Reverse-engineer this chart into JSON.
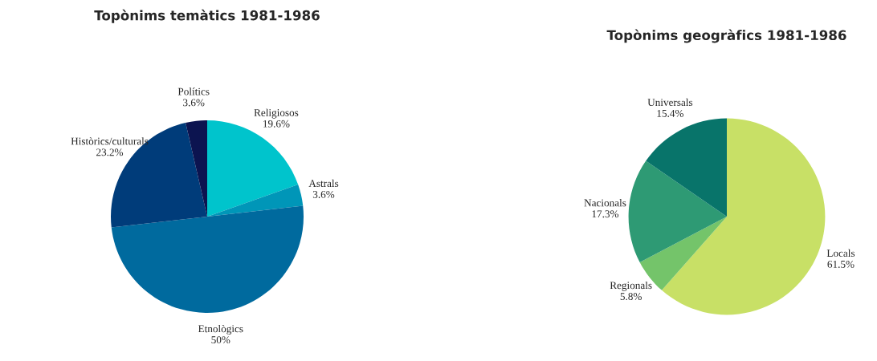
{
  "chart_data": [
    {
      "type": "pie",
      "title": "Topònims temàtics 1981-1986",
      "categories": [
        "Religiosos",
        "Astrals",
        "Etnològics",
        "Històrics/culturals",
        "Polítics"
      ],
      "values": [
        19.6,
        3.6,
        50,
        23.2,
        3.6
      ],
      "value_labels": [
        "19.6%",
        "3.6%",
        "50%",
        "23.2%",
        "3.6%"
      ],
      "colors": [
        "#00c4cc",
        "#0096b8",
        "#006a9e",
        "#003c7a",
        "#0c1450"
      ]
    },
    {
      "type": "pie",
      "title": "Topònims geogràfics 1981-1986",
      "categories": [
        "Locals",
        "Regionals",
        "Nacionals",
        "Universals"
      ],
      "values": [
        61.5,
        5.8,
        17.3,
        15.4
      ],
      "value_labels": [
        "61.5%",
        "5.8%",
        "17.3%",
        "15.4%"
      ],
      "colors": [
        "#c8e066",
        "#74c46a",
        "#2e9a74",
        "#08746a"
      ]
    }
  ]
}
